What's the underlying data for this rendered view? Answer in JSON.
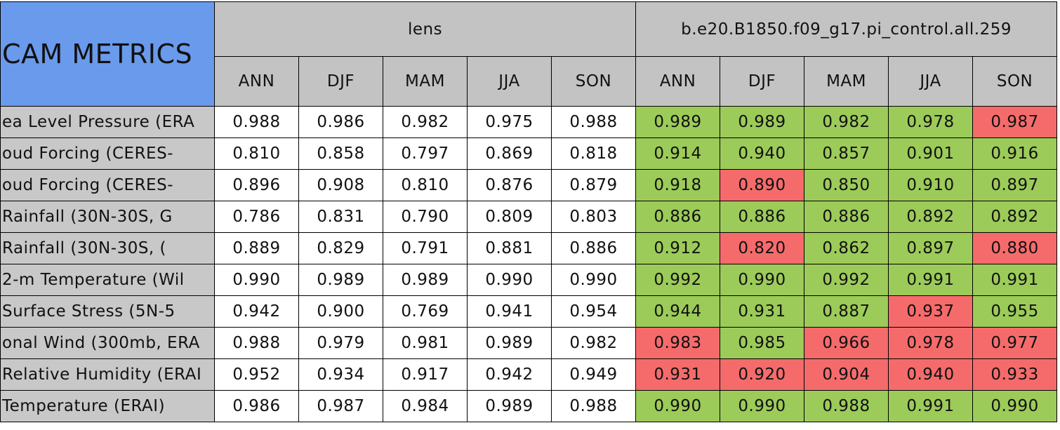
{
  "header": {
    "title": "CAM METRICS",
    "groups": [
      "lens",
      "b.e20.B1850.f09_g17.pi_control.all.259"
    ],
    "seasons": [
      [
        "ANN",
        "DJF",
        "MAM",
        "JJA",
        "SON"
      ],
      [
        "ANN",
        "DJF",
        "MAM",
        "JJA",
        "SON"
      ]
    ]
  },
  "rows": [
    {
      "label": "ea Level Pressure (ERA",
      "cells": [
        [
          "0.988",
          "0.986",
          "0.982",
          "0.975",
          "0.988"
        ],
        [
          "0.989",
          "0.989",
          "0.982",
          "0.978",
          "0.987"
        ]
      ],
      "colors": [
        "#9ccb59",
        "#9ccb59",
        "#9ccb59",
        "#9ccb59",
        "#f56b6b"
      ]
    },
    {
      "label": "oud Forcing (CERES-",
      "cells": [
        [
          "0.810",
          "0.858",
          "0.797",
          "0.869",
          "0.818"
        ],
        [
          "0.914",
          "0.940",
          "0.857",
          "0.901",
          "0.916"
        ]
      ],
      "colors": [
        "#9ccb59",
        "#9ccb59",
        "#9ccb59",
        "#9ccb59",
        "#9ccb59"
      ]
    },
    {
      "label": "oud Forcing (CERES-",
      "cells": [
        [
          "0.896",
          "0.908",
          "0.810",
          "0.876",
          "0.879"
        ],
        [
          "0.918",
          "0.890",
          "0.850",
          "0.910",
          "0.897"
        ]
      ],
      "colors": [
        "#9ccb59",
        "#f56b6b",
        "#9ccb59",
        "#9ccb59",
        "#9ccb59"
      ]
    },
    {
      "label": "Rainfall (30N-30S, G",
      "cells": [
        [
          "0.786",
          "0.831",
          "0.790",
          "0.809",
          "0.803"
        ],
        [
          "0.886",
          "0.886",
          "0.886",
          "0.892",
          "0.892"
        ]
      ],
      "colors": [
        "#9ccb59",
        "#9ccb59",
        "#9ccb59",
        "#9ccb59",
        "#9ccb59"
      ]
    },
    {
      "label": "Rainfall (30N-30S, (",
      "cells": [
        [
          "0.889",
          "0.829",
          "0.791",
          "0.881",
          "0.886"
        ],
        [
          "0.912",
          "0.820",
          "0.862",
          "0.897",
          "0.880"
        ]
      ],
      "colors": [
        "#9ccb59",
        "#f56b6b",
        "#9ccb59",
        "#9ccb59",
        "#f56b6b"
      ]
    },
    {
      "label": "2-m Temperature (Wil",
      "cells": [
        [
          "0.990",
          "0.989",
          "0.989",
          "0.990",
          "0.990"
        ],
        [
          "0.992",
          "0.990",
          "0.992",
          "0.991",
          "0.991"
        ]
      ],
      "colors": [
        "#9ccb59",
        "#9ccb59",
        "#9ccb59",
        "#9ccb59",
        "#9ccb59"
      ]
    },
    {
      "label": "Surface Stress (5N-5",
      "cells": [
        [
          "0.942",
          "0.900",
          "0.769",
          "0.941",
          "0.954"
        ],
        [
          "0.944",
          "0.931",
          "0.887",
          "0.937",
          "0.955"
        ]
      ],
      "colors": [
        "#9ccb59",
        "#9ccb59",
        "#9ccb59",
        "#f56b6b",
        "#9ccb59"
      ]
    },
    {
      "label": "onal Wind (300mb, ERA",
      "cells": [
        [
          "0.988",
          "0.979",
          "0.981",
          "0.989",
          "0.982"
        ],
        [
          "0.983",
          "0.985",
          "0.966",
          "0.978",
          "0.977"
        ]
      ],
      "colors": [
        "#f56b6b",
        "#9ccb59",
        "#f56b6b",
        "#f56b6b",
        "#f56b6b"
      ]
    },
    {
      "label": "Relative Humidity (ERAI",
      "cells": [
        [
          "0.952",
          "0.934",
          "0.917",
          "0.942",
          "0.949"
        ],
        [
          "0.931",
          "0.920",
          "0.904",
          "0.940",
          "0.933"
        ]
      ],
      "colors": [
        "#f56b6b",
        "#f56b6b",
        "#f56b6b",
        "#f56b6b",
        "#f56b6b"
      ]
    },
    {
      "label": "Temperature (ERAI)",
      "cells": [
        [
          "0.986",
          "0.987",
          "0.984",
          "0.989",
          "0.988"
        ],
        [
          "0.990",
          "0.990",
          "0.988",
          "0.991",
          "0.990"
        ]
      ],
      "colors": [
        "#9ccb59",
        "#9ccb59",
        "#9ccb59",
        "#9ccb59",
        "#9ccb59"
      ]
    }
  ]
}
